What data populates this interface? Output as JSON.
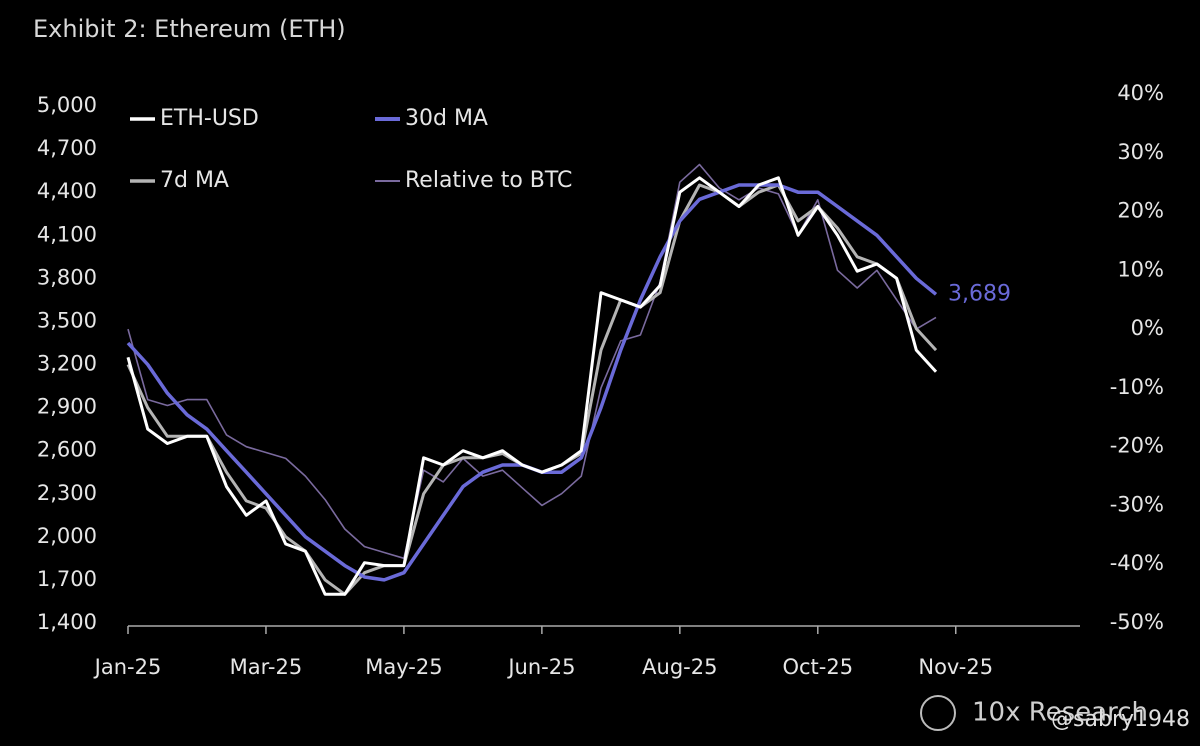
{
  "chart_data": {
    "type": "line",
    "title": "Exhibit 2: Ethereum (ETH)",
    "source": "10x Research",
    "watermark": "@sabry1948",
    "legend": "upper left",
    "categories": [
      "Jan-25",
      null,
      null,
      null,
      null,
      null,
      null,
      "Mar-25",
      null,
      null,
      null,
      null,
      null,
      null,
      "May-25",
      null,
      null,
      null,
      null,
      null,
      null,
      "Jun-25",
      null,
      null,
      null,
      null,
      null,
      null,
      "Aug-25",
      null,
      null,
      null,
      null,
      null,
      null,
      "Oct-25",
      null,
      null,
      null,
      null,
      null,
      null,
      "Nov-25",
      null,
      null,
      null,
      null,
      null,
      null
    ],
    "ylim": [
      1400,
      5000
    ],
    "yticks": [
      {
        "value": 1400,
        "label": "1,400"
      },
      {
        "value": 1700,
        "label": "1,700"
      },
      {
        "value": 2000,
        "label": "2,000"
      },
      {
        "value": 2300,
        "label": "2,300"
      },
      {
        "value": 2600,
        "label": "2,600"
      },
      {
        "value": 2900,
        "label": "2,900"
      },
      {
        "value": 3200,
        "label": "3,200"
      },
      {
        "value": 3500,
        "label": "3,500"
      },
      {
        "value": 3800,
        "label": "3,800"
      },
      {
        "value": 4100,
        "label": "4,100"
      },
      {
        "value": 4400,
        "label": "4,400"
      },
      {
        "value": 4700,
        "label": "4,700"
      },
      {
        "value": 5000,
        "label": "5,000"
      }
    ],
    "y2lim": [
      -50,
      40
    ],
    "y2ticks": [
      {
        "value": -50,
        "label": "-50%"
      },
      {
        "value": -40,
        "label": "-40%"
      },
      {
        "value": -30,
        "label": "-30%"
      },
      {
        "value": -20,
        "label": "-20%"
      },
      {
        "value": -10,
        "label": "-10%"
      },
      {
        "value": 0,
        "label": "0%"
      },
      {
        "value": 10,
        "label": "10%"
      },
      {
        "value": 20,
        "label": "20%"
      },
      {
        "value": 30,
        "label": "30%"
      },
      {
        "value": 40,
        "label": "40%"
      }
    ],
    "series": [
      {
        "name": "ETH-USD",
        "color": "#ffffff",
        "width": 3,
        "values": [
          3250,
          2750,
          2650,
          2700,
          2700,
          2350,
          2150,
          2250,
          1950,
          1900,
          1600,
          1600,
          1820,
          1800,
          1800,
          2550,
          2500,
          2600,
          2550,
          2600,
          2500,
          2450,
          2500,
          2600,
          3700,
          3650,
          3600,
          3750,
          4400,
          4500,
          4400,
          4300,
          4450,
          4500,
          4100,
          4300,
          4100,
          3850,
          3900,
          3800,
          3300,
          3150,
          null,
          null,
          null,
          null,
          null,
          null,
          null
        ]
      },
      {
        "name": "30d MA",
        "color": "#6a6ad8",
        "width": 3.5,
        "values": [
          3350,
          3200,
          3000,
          2850,
          2750,
          2600,
          2450,
          2300,
          2150,
          2000,
          1900,
          1800,
          1720,
          1700,
          1750,
          1950,
          2150,
          2350,
          2450,
          2500,
          2500,
          2450,
          2450,
          2550,
          2900,
          3300,
          3650,
          3950,
          4200,
          4350,
          4400,
          4450,
          4450,
          4450,
          4400,
          4400,
          4300,
          4200,
          4100,
          3950,
          3800,
          3689,
          null,
          null,
          null,
          null,
          null,
          null,
          null
        ],
        "value_labels": [
          null,
          null,
          null,
          null,
          null,
          null,
          null,
          null,
          null,
          null,
          null,
          null,
          null,
          null,
          null,
          null,
          null,
          null,
          null,
          null,
          null,
          null,
          null,
          null,
          null,
          null,
          null,
          null,
          null,
          null,
          null,
          null,
          null,
          null,
          null,
          null,
          null,
          null,
          null,
          null,
          null,
          "3,689",
          null,
          null,
          null,
          null,
          null,
          null,
          null
        ]
      },
      {
        "name": "7d MA",
        "color": "#b4b4b4",
        "width": 3,
        "values": [
          3200,
          2900,
          2700,
          2700,
          2700,
          2450,
          2250,
          2200,
          2000,
          1900,
          1700,
          1600,
          1750,
          1800,
          1800,
          2300,
          2500,
          2550,
          2550,
          2580,
          2500,
          2450,
          2500,
          2580,
          3300,
          3650,
          3600,
          3700,
          4200,
          4450,
          4400,
          4300,
          4400,
          4450,
          4200,
          4300,
          4150,
          3950,
          3900,
          3800,
          3450,
          3300,
          null,
          null,
          null,
          null,
          null,
          null,
          null
        ]
      },
      {
        "name": "Relative to BTC",
        "color": "#7a6a9e",
        "width": 1.6,
        "axis": "y2",
        "values": [
          0,
          -12,
          -13,
          -12,
          -12,
          -18,
          -20,
          -21,
          -22,
          -25,
          -29,
          -34,
          -37,
          -38,
          -39,
          -24,
          -26,
          -22,
          -25,
          -24,
          -27,
          -30,
          -28,
          -25,
          -10,
          -2,
          -1,
          8,
          25,
          28,
          24,
          22,
          24,
          23,
          16,
          22,
          10,
          7,
          10,
          5,
          0,
          2,
          null,
          null,
          null,
          null,
          null,
          null,
          null
        ]
      }
    ]
  }
}
